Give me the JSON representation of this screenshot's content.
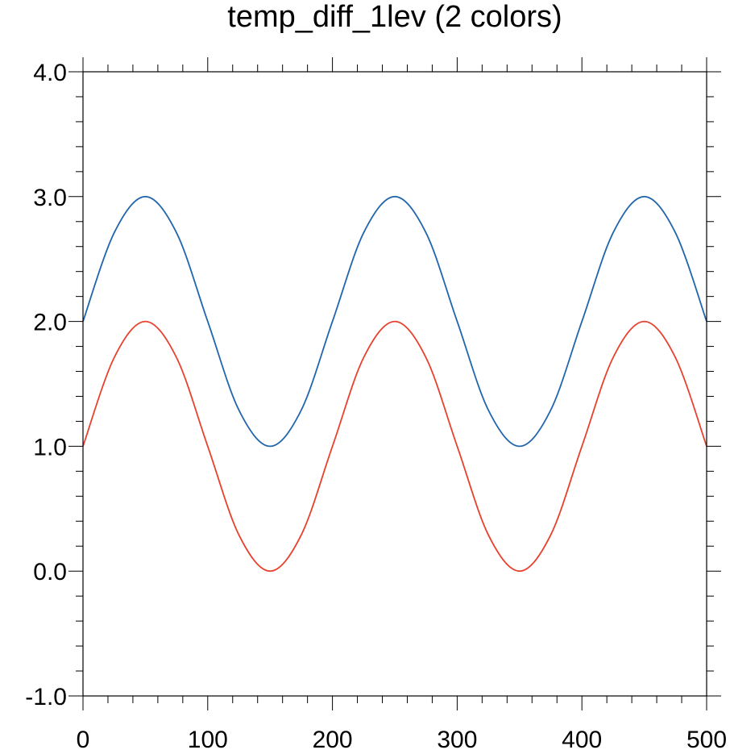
{
  "chart_data": {
    "type": "line",
    "title": "temp_diff_1lev (2 colors)",
    "xlabel": "",
    "ylabel": "",
    "xlim": [
      0,
      500
    ],
    "ylim": [
      -1.0,
      4.0
    ],
    "x_ticks": [
      0,
      100,
      200,
      300,
      400,
      500
    ],
    "x_tick_labels": [
      "0",
      "100",
      "200",
      "300",
      "400",
      "500"
    ],
    "y_ticks": [
      -1.0,
      0.0,
      1.0,
      2.0,
      3.0,
      4.0
    ],
    "y_tick_labels": [
      "-1.0",
      "0.0",
      "1.0",
      "2.0",
      "3.0",
      "4.0"
    ],
    "grid": false,
    "series": [
      {
        "color": "#2166ac",
        "x": [
          0,
          25,
          50,
          75,
          100,
          125,
          150,
          175,
          200,
          225,
          250,
          275,
          300,
          325,
          350,
          375,
          400,
          425,
          450,
          475,
          500
        ],
        "y": [
          2.0,
          2.71,
          3.0,
          2.71,
          2.0,
          1.29,
          1.0,
          1.29,
          2.0,
          2.71,
          3.0,
          2.71,
          2.0,
          1.29,
          1.0,
          1.29,
          2.0,
          2.71,
          3.0,
          2.71,
          2.0
        ]
      },
      {
        "color": "#e8412e",
        "x": [
          0,
          25,
          50,
          75,
          100,
          125,
          150,
          175,
          200,
          225,
          250,
          275,
          300,
          325,
          350,
          375,
          400,
          425,
          450,
          475,
          500
        ],
        "y": [
          1.0,
          1.71,
          2.0,
          1.71,
          1.0,
          0.29,
          0.0,
          0.29,
          1.0,
          1.71,
          2.0,
          1.71,
          1.0,
          0.29,
          0.0,
          0.29,
          1.0,
          1.71,
          2.0,
          1.71,
          1.0
        ]
      }
    ]
  }
}
